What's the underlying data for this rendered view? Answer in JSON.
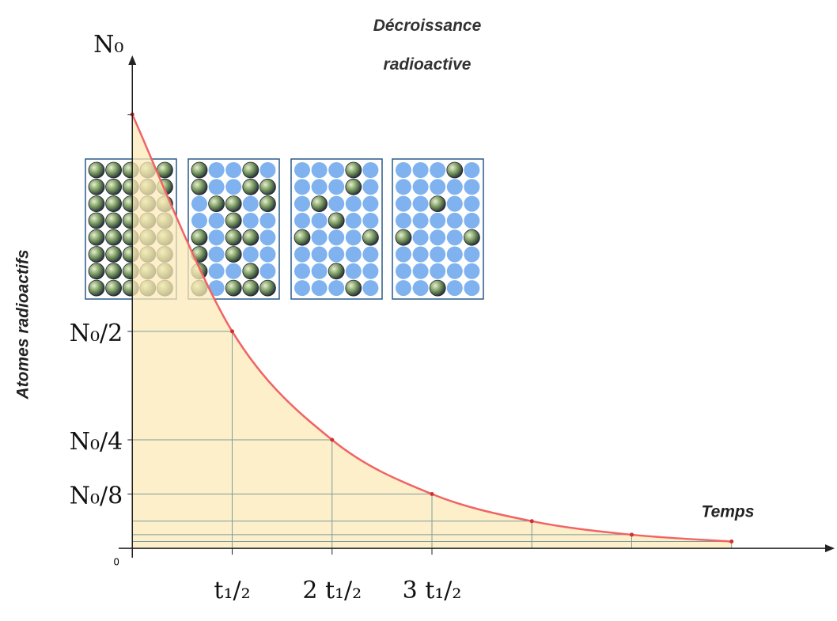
{
  "chart_data": {
    "type": "line",
    "title": "Décroissance radioactive",
    "x_label": "Temps",
    "y_label": "Atomes radioactifs",
    "x": [
      0,
      1,
      2,
      3,
      4,
      5,
      6
    ],
    "series": [
      {
        "color": "#f06464",
        "fill": "#fbe9b7",
        "values": [
          1,
          0.5,
          0.25,
          0.125,
          0.0625,
          0.03125,
          0.015625
        ]
      }
    ],
    "xlim": [
      -0.2,
      7
    ],
    "ylim": [
      -0.04,
      1.14
    ],
    "xticks": [
      {
        "value": 0,
        "label": "0"
      },
      {
        "value": 1,
        "label": "t₁/₂"
      },
      {
        "value": 2,
        "label": "2 t₁/₂"
      },
      {
        "value": 3,
        "label": "3 t₁/₂"
      }
    ],
    "yticks": [
      {
        "value": 1,
        "label": "N₀"
      },
      {
        "value": 0.5,
        "label": "N₀/2"
      },
      {
        "value": 0.25,
        "label": "N₀/4"
      },
      {
        "value": 0.125,
        "label": "N₀/8"
      }
    ],
    "grid": true
  }
}
